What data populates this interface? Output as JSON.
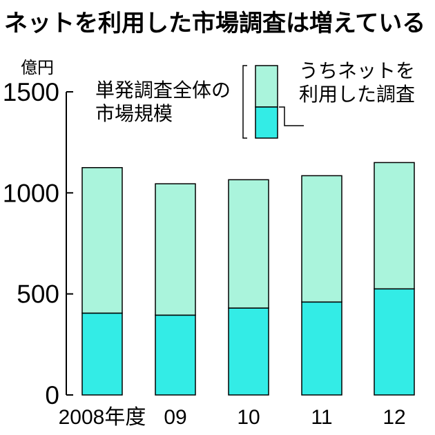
{
  "chart_data": {
    "type": "bar",
    "stacked": true,
    "title": "ネットを利用した市場調査は増えている",
    "ylabel": "億円",
    "xlabel": "",
    "ylim": [
      0,
      1500
    ],
    "yticks": [
      "0",
      "500",
      "1000",
      "1500"
    ],
    "categories": [
      "2008年度",
      "09",
      "10",
      "11",
      "12"
    ],
    "series": [
      {
        "name": "うちネットを利用した調査",
        "values": [
          405,
          395,
          430,
          460,
          525
        ],
        "color": "#33ece6"
      },
      {
        "name": "単発調査全体の市場規模",
        "values": [
          720,
          650,
          635,
          625,
          625
        ],
        "color": "#aaf4dc"
      }
    ],
    "totals": [
      1125,
      1045,
      1065,
      1085,
      1150
    ],
    "grid": false
  }
}
